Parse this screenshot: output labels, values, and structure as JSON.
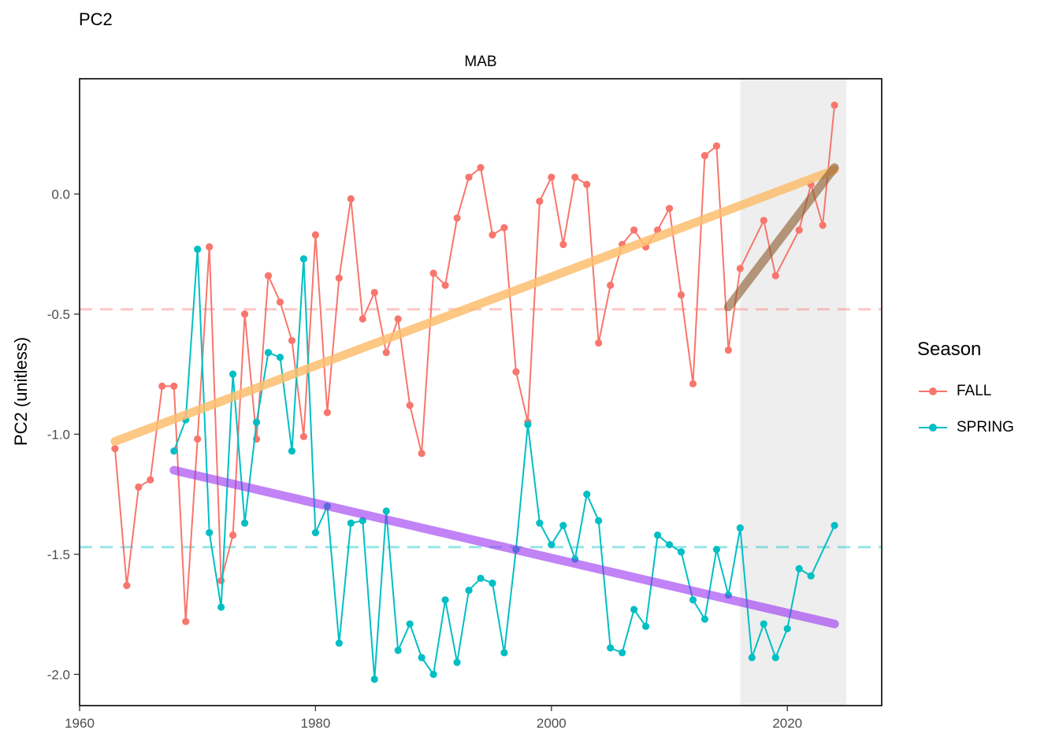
{
  "chart_data": {
    "type": "line",
    "title": "PC2",
    "facet": "MAB",
    "xlabel": "",
    "ylabel": "PC2 (unitless)",
    "xlim": [
      1960,
      2028
    ],
    "ylim": [
      -2.13,
      0.48
    ],
    "x_ticks": [
      1960,
      1980,
      2000,
      2020
    ],
    "y_ticks": [
      0.0,
      -0.5,
      -1.0,
      -1.5,
      -2.0
    ],
    "y_tick_labels": [
      "0.0",
      "-0.5",
      "-1.0",
      "-1.5",
      "-2.0"
    ],
    "grid": false,
    "legend": {
      "title": "Season",
      "position": "right"
    },
    "shaded_region": {
      "x": [
        2016,
        2025
      ],
      "color": "#EBEBEB"
    },
    "series": [
      {
        "name": "FALL",
        "color": "#F8766D",
        "mean": -0.48,
        "points": [
          [
            1963,
            -1.06
          ],
          [
            1964,
            -1.63
          ],
          [
            1965,
            -1.22
          ],
          [
            1966,
            -1.19
          ],
          [
            1967,
            -0.8
          ],
          [
            1968,
            -0.8
          ],
          [
            1969,
            -1.78
          ],
          [
            1970,
            -1.02
          ],
          [
            1971,
            -0.22
          ],
          [
            1972,
            -1.61
          ],
          [
            1973,
            -1.42
          ],
          [
            1974,
            -0.5
          ],
          [
            1975,
            -1.02
          ],
          [
            1976,
            -0.34
          ],
          [
            1977,
            -0.45
          ],
          [
            1978,
            -0.61
          ],
          [
            1979,
            -1.01
          ],
          [
            1980,
            -0.17
          ],
          [
            1981,
            -0.91
          ],
          [
            1982,
            -0.35
          ],
          [
            1983,
            -0.02
          ],
          [
            1984,
            -0.52
          ],
          [
            1985,
            -0.41
          ],
          [
            1986,
            -0.66
          ],
          [
            1987,
            -0.52
          ],
          [
            1988,
            -0.88
          ],
          [
            1989,
            -1.08
          ],
          [
            1990,
            -0.33
          ],
          [
            1991,
            -0.38
          ],
          [
            1992,
            -0.1
          ],
          [
            1993,
            0.07
          ],
          [
            1994,
            0.11
          ],
          [
            1995,
            -0.17
          ],
          [
            1996,
            -0.14
          ],
          [
            1997,
            -0.74
          ],
          [
            1998,
            -0.95
          ],
          [
            1999,
            -0.03
          ],
          [
            2000,
            0.07
          ],
          [
            2001,
            -0.21
          ],
          [
            2002,
            0.07
          ],
          [
            2003,
            0.04
          ],
          [
            2004,
            -0.62
          ],
          [
            2005,
            -0.38
          ],
          [
            2006,
            -0.21
          ],
          [
            2007,
            -0.15
          ],
          [
            2008,
            -0.22
          ],
          [
            2009,
            -0.15
          ],
          [
            2010,
            -0.06
          ],
          [
            2011,
            -0.42
          ],
          [
            2012,
            -0.79
          ],
          [
            2013,
            0.16
          ],
          [
            2014,
            0.2
          ],
          [
            2015,
            -0.65
          ],
          [
            2016,
            -0.31
          ],
          [
            2018,
            -0.11
          ],
          [
            2019,
            -0.34
          ],
          [
            2021,
            -0.15
          ],
          [
            2022,
            0.04
          ],
          [
            2023,
            -0.13
          ],
          [
            2024,
            0.37
          ]
        ]
      },
      {
        "name": "SPRING",
        "color": "#00BFC4",
        "mean": -1.47,
        "points": [
          [
            1968,
            -1.07
          ],
          [
            1969,
            -0.94
          ],
          [
            1970,
            -0.23
          ],
          [
            1971,
            -1.41
          ],
          [
            1972,
            -1.72
          ],
          [
            1973,
            -0.75
          ],
          [
            1974,
            -1.37
          ],
          [
            1975,
            -0.95
          ],
          [
            1976,
            -0.66
          ],
          [
            1977,
            -0.68
          ],
          [
            1978,
            -1.07
          ],
          [
            1979,
            -0.27
          ],
          [
            1980,
            -1.41
          ],
          [
            1981,
            -1.3
          ],
          [
            1982,
            -1.87
          ],
          [
            1983,
            -1.37
          ],
          [
            1984,
            -1.36
          ],
          [
            1985,
            -2.02
          ],
          [
            1986,
            -1.32
          ],
          [
            1987,
            -1.9
          ],
          [
            1988,
            -1.79
          ],
          [
            1989,
            -1.93
          ],
          [
            1990,
            -2.0
          ],
          [
            1991,
            -1.69
          ],
          [
            1992,
            -1.95
          ],
          [
            1993,
            -1.65
          ],
          [
            1994,
            -1.6
          ],
          [
            1995,
            -1.62
          ],
          [
            1996,
            -1.91
          ],
          [
            1997,
            -1.48
          ],
          [
            1998,
            -0.96
          ],
          [
            1999,
            -1.37
          ],
          [
            2000,
            -1.46
          ],
          [
            2001,
            -1.38
          ],
          [
            2002,
            -1.52
          ],
          [
            2003,
            -1.25
          ],
          [
            2004,
            -1.36
          ],
          [
            2005,
            -1.89
          ],
          [
            2006,
            -1.91
          ],
          [
            2007,
            -1.73
          ],
          [
            2008,
            -1.8
          ],
          [
            2009,
            -1.42
          ],
          [
            2010,
            -1.46
          ],
          [
            2011,
            -1.49
          ],
          [
            2012,
            -1.69
          ],
          [
            2013,
            -1.77
          ],
          [
            2014,
            -1.48
          ],
          [
            2015,
            -1.67
          ],
          [
            2016,
            -1.39
          ],
          [
            2017,
            -1.93
          ],
          [
            2018,
            -1.79
          ],
          [
            2019,
            -1.93
          ],
          [
            2020,
            -1.81
          ],
          [
            2021,
            -1.56
          ],
          [
            2022,
            -1.59
          ],
          [
            2024,
            -1.38
          ]
        ]
      }
    ],
    "trend_lines": [
      {
        "color": "#FDBF6F",
        "opacity": 0.85,
        "from": [
          1963,
          -1.03
        ],
        "to": [
          2024,
          0.1
        ]
      },
      {
        "color": "#9932F0",
        "opacity": 0.6,
        "from": [
          1968,
          -1.15
        ],
        "to": [
          2024,
          -1.79
        ]
      },
      {
        "color": "#8B5A2B",
        "opacity": 0.6,
        "from": [
          2015,
          -0.47
        ],
        "to": [
          2024,
          0.11
        ]
      }
    ]
  }
}
